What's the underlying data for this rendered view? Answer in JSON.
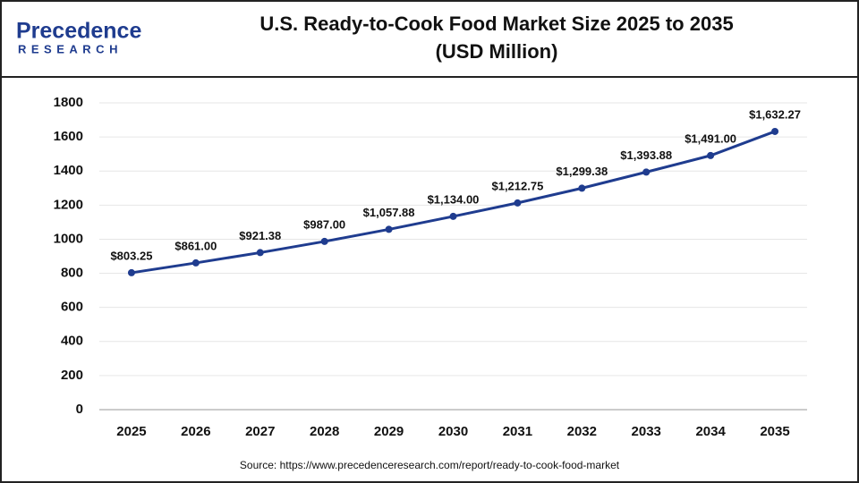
{
  "logo": {
    "name": "Precedence",
    "tagline": "RESEARCH"
  },
  "chart_data": {
    "type": "line",
    "title": "U.S. Ready-to-Cook Food Market Size 2025 to 2035",
    "subtitle": "(USD Million)",
    "categories": [
      "2025",
      "2026",
      "2027",
      "2028",
      "2029",
      "2030",
      "2031",
      "2032",
      "2033",
      "2034",
      "2035"
    ],
    "series": [
      {
        "color": "#1f3c8f",
        "values": [
          803.25,
          861.0,
          921.38,
          987.0,
          1057.88,
          1134.0,
          1212.75,
          1299.38,
          1393.88,
          1491.0,
          1632.27
        ],
        "value_labels": [
          "$803.25",
          "$861.00",
          "$921.38",
          "$987.00",
          "$1,057.88",
          "$1,134.00",
          "$1,212.75",
          "$1,299.38",
          "$1,393.88",
          "$1,491.00",
          "$1,632.27"
        ]
      }
    ],
    "ylim": [
      0,
      1800
    ],
    "yticks": [
      0,
      200,
      400,
      600,
      800,
      1000,
      1200,
      1400,
      1600,
      1800
    ],
    "grid": true,
    "source": "Source: https://www.precedenceresearch.com/report/ready-to-cook-food-market"
  }
}
